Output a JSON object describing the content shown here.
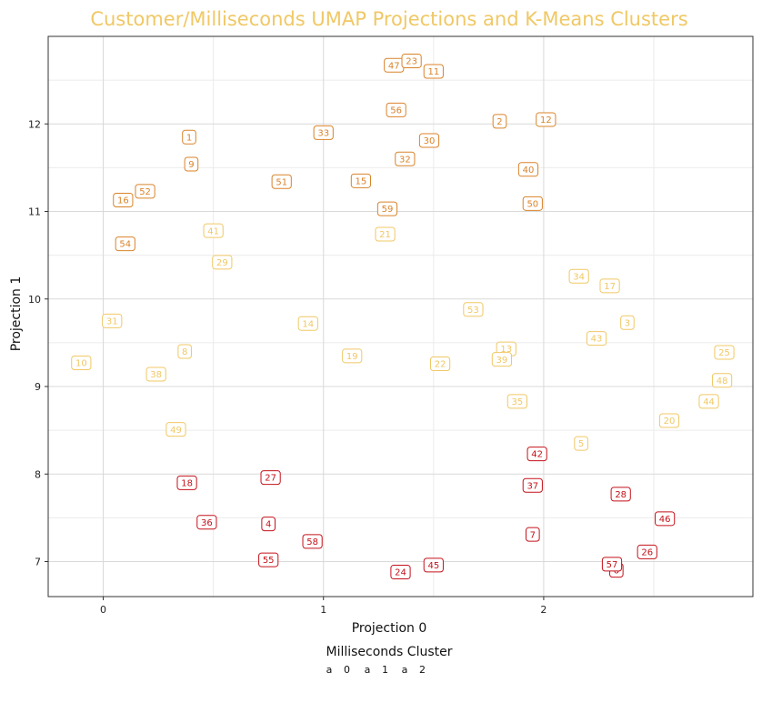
{
  "chart_data": {
    "type": "scatter",
    "title": "Customer/Milliseconds UMAP Projections and K-Means Clusters",
    "xlabel": "Projection 0",
    "ylabel": "Projection 1",
    "xlim": [
      -0.25,
      2.95
    ],
    "ylim": [
      6.6,
      13.0
    ],
    "xticks": [
      0,
      1,
      2
    ],
    "yticks": [
      7,
      8,
      9,
      10,
      11,
      12
    ],
    "grid": true,
    "legend": {
      "title": "Milliseconds Cluster",
      "placement": "bottom",
      "key_glyph": "a",
      "entries": [
        "0",
        "1",
        "2"
      ]
    },
    "colors": {
      "0": "#f0c865",
      "1": "#d9832a",
      "2": "#c4121a"
    },
    "points": [
      {
        "label": "10",
        "cluster": "0",
        "x": -0.1,
        "y": 9.27
      },
      {
        "label": "31",
        "cluster": "0",
        "x": 0.04,
        "y": 9.75
      },
      {
        "label": "38",
        "cluster": "0",
        "x": 0.24,
        "y": 9.14
      },
      {
        "label": "8",
        "cluster": "0",
        "x": 0.37,
        "y": 9.4
      },
      {
        "label": "49",
        "cluster": "0",
        "x": 0.33,
        "y": 8.51
      },
      {
        "label": "41",
        "cluster": "0",
        "x": 0.5,
        "y": 10.78
      },
      {
        "label": "29",
        "cluster": "0",
        "x": 0.54,
        "y": 10.42
      },
      {
        "label": "14",
        "cluster": "0",
        "x": 0.93,
        "y": 9.72
      },
      {
        "label": "19",
        "cluster": "0",
        "x": 1.13,
        "y": 9.35
      },
      {
        "label": "21",
        "cluster": "0",
        "x": 1.28,
        "y": 10.74
      },
      {
        "label": "22",
        "cluster": "0",
        "x": 1.53,
        "y": 9.26
      },
      {
        "label": "53",
        "cluster": "0",
        "x": 1.68,
        "y": 9.88
      },
      {
        "label": "13",
        "cluster": "0",
        "x": 1.83,
        "y": 9.43
      },
      {
        "label": "39",
        "cluster": "0",
        "x": 1.81,
        "y": 9.31
      },
      {
        "label": "35",
        "cluster": "0",
        "x": 1.88,
        "y": 8.83
      },
      {
        "label": "34",
        "cluster": "0",
        "x": 2.16,
        "y": 10.26
      },
      {
        "label": "17",
        "cluster": "0",
        "x": 2.3,
        "y": 10.15
      },
      {
        "label": "43",
        "cluster": "0",
        "x": 2.24,
        "y": 9.55
      },
      {
        "label": "3",
        "cluster": "0",
        "x": 2.38,
        "y": 9.73
      },
      {
        "label": "5",
        "cluster": "0",
        "x": 2.17,
        "y": 8.35
      },
      {
        "label": "20",
        "cluster": "0",
        "x": 2.57,
        "y": 8.61
      },
      {
        "label": "44",
        "cluster": "0",
        "x": 2.75,
        "y": 8.83
      },
      {
        "label": "48",
        "cluster": "0",
        "x": 2.81,
        "y": 9.07
      },
      {
        "label": "25",
        "cluster": "0",
        "x": 2.82,
        "y": 9.39
      },
      {
        "label": "47",
        "cluster": "1",
        "x": 1.32,
        "y": 12.67
      },
      {
        "label": "23",
        "cluster": "1",
        "x": 1.4,
        "y": 12.72
      },
      {
        "label": "11",
        "cluster": "1",
        "x": 1.5,
        "y": 12.6
      },
      {
        "label": "56",
        "cluster": "1",
        "x": 1.33,
        "y": 12.16
      },
      {
        "label": "2",
        "cluster": "1",
        "x": 1.8,
        "y": 12.03
      },
      {
        "label": "12",
        "cluster": "1",
        "x": 2.01,
        "y": 12.05
      },
      {
        "label": "1",
        "cluster": "1",
        "x": 0.39,
        "y": 11.85
      },
      {
        "label": "33",
        "cluster": "1",
        "x": 1.0,
        "y": 11.9
      },
      {
        "label": "30",
        "cluster": "1",
        "x": 1.48,
        "y": 11.81
      },
      {
        "label": "32",
        "cluster": "1",
        "x": 1.37,
        "y": 11.6
      },
      {
        "label": "9",
        "cluster": "1",
        "x": 0.4,
        "y": 11.54
      },
      {
        "label": "40",
        "cluster": "1",
        "x": 1.93,
        "y": 11.48
      },
      {
        "label": "51",
        "cluster": "1",
        "x": 0.81,
        "y": 11.34
      },
      {
        "label": "15",
        "cluster": "1",
        "x": 1.17,
        "y": 11.35
      },
      {
        "label": "52",
        "cluster": "1",
        "x": 0.19,
        "y": 11.23
      },
      {
        "label": "16",
        "cluster": "1",
        "x": 0.09,
        "y": 11.13
      },
      {
        "label": "59",
        "cluster": "1",
        "x": 1.29,
        "y": 11.03
      },
      {
        "label": "50",
        "cluster": "1",
        "x": 1.95,
        "y": 11.09
      },
      {
        "label": "54",
        "cluster": "1",
        "x": 0.1,
        "y": 10.63
      },
      {
        "label": "42",
        "cluster": "2",
        "x": 1.97,
        "y": 8.23
      },
      {
        "label": "37",
        "cluster": "2",
        "x": 1.95,
        "y": 7.87
      },
      {
        "label": "18",
        "cluster": "2",
        "x": 0.38,
        "y": 7.9
      },
      {
        "label": "27",
        "cluster": "2",
        "x": 0.76,
        "y": 7.96
      },
      {
        "label": "28",
        "cluster": "2",
        "x": 2.35,
        "y": 7.77
      },
      {
        "label": "46",
        "cluster": "2",
        "x": 2.55,
        "y": 7.49
      },
      {
        "label": "36",
        "cluster": "2",
        "x": 0.47,
        "y": 7.45
      },
      {
        "label": "4",
        "cluster": "2",
        "x": 0.75,
        "y": 7.43
      },
      {
        "label": "7",
        "cluster": "2",
        "x": 1.95,
        "y": 7.31
      },
      {
        "label": "58",
        "cluster": "2",
        "x": 0.95,
        "y": 7.23
      },
      {
        "label": "55",
        "cluster": "2",
        "x": 0.75,
        "y": 7.02
      },
      {
        "label": "26",
        "cluster": "2",
        "x": 2.47,
        "y": 7.11
      },
      {
        "label": "6",
        "cluster": "2",
        "x": 2.33,
        "y": 6.9
      },
      {
        "label": "57",
        "cluster": "2",
        "x": 2.31,
        "y": 6.97
      },
      {
        "label": "45",
        "cluster": "2",
        "x": 1.5,
        "y": 6.96
      },
      {
        "label": "24",
        "cluster": "2",
        "x": 1.35,
        "y": 6.88
      }
    ]
  }
}
